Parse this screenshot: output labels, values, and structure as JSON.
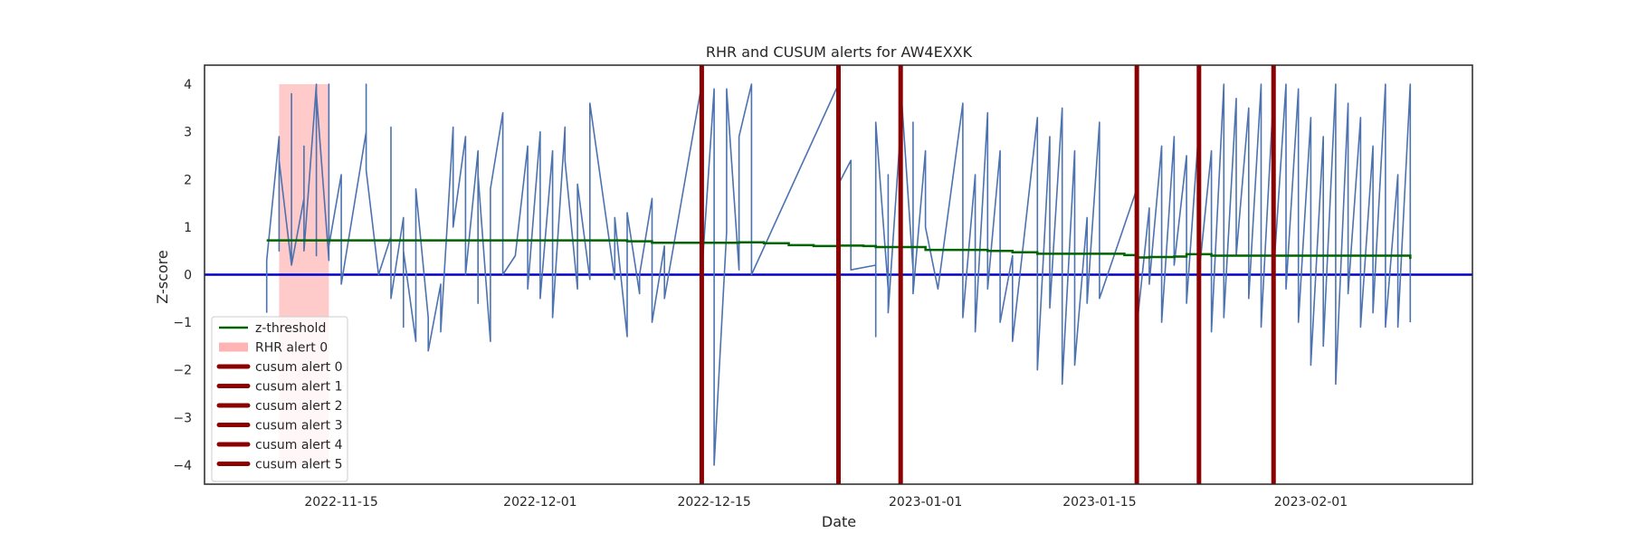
{
  "chart_data": {
    "type": "line",
    "title": "RHR and CUSUM alerts for AW4EXXK",
    "xlabel": "Date",
    "ylabel": "Z-score",
    "xlim": [
      "2022-11-04",
      "2023-02-14"
    ],
    "ylim": [
      -4.4,
      4.4
    ],
    "x_ticks": [
      "2022-11-15",
      "2022-12-01",
      "2022-12-15",
      "2023-01-01",
      "2023-01-15",
      "2023-02-01"
    ],
    "y_ticks": [
      4,
      3,
      2,
      1,
      0,
      -1,
      -2,
      -3,
      -4
    ],
    "grid": false,
    "legend_position": "lower-left",
    "colors": {
      "zscore": "#4c72b0",
      "z_threshold": "#006400",
      "rhr_alert": "#ffb3b3",
      "cusum_alert": "#8b0000",
      "baseline": "#0000cc"
    },
    "series": [
      {
        "name": "z-threshold",
        "type": "step",
        "x": [
          "2022-11-09",
          "2022-12-08",
          "2022-12-10",
          "2022-12-13",
          "2022-12-17",
          "2022-12-19",
          "2022-12-21",
          "2022-12-23",
          "2022-12-25",
          "2022-12-27",
          "2022-12-28",
          "2023-01-01",
          "2023-01-06",
          "2023-01-08",
          "2023-01-10",
          "2023-01-17",
          "2023-01-18",
          "2023-01-19",
          "2023-01-21",
          "2023-01-22",
          "2023-01-24",
          "2023-02-09"
        ],
        "y": [
          0.72,
          0.7,
          0.67,
          0.67,
          0.68,
          0.66,
          0.62,
          0.6,
          0.61,
          0.6,
          0.58,
          0.52,
          0.5,
          0.47,
          0.44,
          0.41,
          0.36,
          0.37,
          0.38,
          0.43,
          0.4,
          0.33
        ]
      }
    ],
    "zscore_points": [
      [
        "2022-11-09",
        -0.8
      ],
      [
        "2022-11-09",
        0.3
      ],
      [
        "2022-11-10",
        2.9
      ],
      [
        "2022-11-10",
        0.5
      ],
      [
        "2022-11-10",
        2.4
      ],
      [
        "2022-11-11",
        0.2
      ],
      [
        "2022-11-11",
        3.8
      ],
      [
        "2022-11-11",
        0.2
      ],
      [
        "2022-11-12",
        1.6
      ],
      [
        "2022-11-12",
        2.7
      ],
      [
        "2022-11-12",
        0.5
      ],
      [
        "2022-11-13",
        4.0
      ],
      [
        "2022-11-13",
        0.4
      ],
      [
        "2022-11-13",
        1.9
      ],
      [
        "2022-11-13",
        3.8
      ],
      [
        "2022-11-14",
        0.3
      ],
      [
        "2022-11-14",
        4.0
      ],
      [
        "2022-11-14",
        0.6
      ],
      [
        "2022-11-15",
        2.1
      ],
      [
        "2022-11-15",
        -0.2
      ],
      [
        "2022-11-17",
        3.0
      ],
      [
        "2022-11-17",
        4.0
      ],
      [
        "2022-11-17",
        2.2
      ],
      [
        "2022-11-18",
        0.0
      ],
      [
        "2022-11-19",
        0.8
      ],
      [
        "2022-11-19",
        3.1
      ],
      [
        "2022-11-19",
        -0.5
      ],
      [
        "2022-11-20",
        1.2
      ],
      [
        "2022-11-20",
        -1.1
      ],
      [
        "2022-11-20",
        0.5
      ],
      [
        "2022-11-21",
        -1.4
      ],
      [
        "2022-11-21",
        1.8
      ],
      [
        "2022-11-22",
        -0.9
      ],
      [
        "2022-11-22",
        -1.6
      ],
      [
        "2022-11-23",
        -0.2
      ],
      [
        "2022-11-23",
        -1.2
      ],
      [
        "2022-11-24",
        3.1
      ],
      [
        "2022-11-24",
        1.0
      ],
      [
        "2022-11-25",
        2.9
      ],
      [
        "2022-11-25",
        0.0
      ],
      [
        "2022-11-26",
        2.6
      ],
      [
        "2022-11-26",
        -0.6
      ],
      [
        "2022-11-26",
        2.1
      ],
      [
        "2022-11-27",
        -1.4
      ],
      [
        "2022-11-27",
        1.8
      ],
      [
        "2022-11-28",
        3.4
      ],
      [
        "2022-11-28",
        0.0
      ],
      [
        "2022-11-29",
        0.4
      ],
      [
        "2022-11-30",
        2.7
      ],
      [
        "2022-11-30",
        -0.3
      ],
      [
        "2022-12-01",
        3.0
      ],
      [
        "2022-12-01",
        1.9
      ],
      [
        "2022-12-01",
        -0.5
      ],
      [
        "2022-12-02",
        2.6
      ],
      [
        "2022-12-02",
        -0.9
      ],
      [
        "2022-12-03",
        3.1
      ],
      [
        "2022-12-03",
        2.4
      ],
      [
        "2022-12-04",
        -0.3
      ],
      [
        "2022-12-04",
        1.9
      ],
      [
        "2022-12-05",
        -0.1
      ],
      [
        "2022-12-05",
        3.6
      ],
      [
        "2022-12-07",
        -0.1
      ],
      [
        "2022-12-07",
        1.2
      ],
      [
        "2022-12-08",
        -1.3
      ],
      [
        "2022-12-08",
        1.3
      ],
      [
        "2022-12-09",
        -0.4
      ],
      [
        "2022-12-09",
        0.0
      ],
      [
        "2022-12-10",
        1.6
      ],
      [
        "2022-12-10",
        -1.0
      ],
      [
        "2022-12-11",
        0.6
      ],
      [
        "2022-12-11",
        -0.5
      ],
      [
        "2022-12-14",
        4.0
      ],
      [
        "2022-12-14",
        0.0
      ],
      [
        "2022-12-15",
        3.9
      ],
      [
        "2022-12-15",
        -4.0
      ],
      [
        "2022-12-16",
        0.9
      ],
      [
        "2022-12-16",
        3.9
      ],
      [
        "2022-12-17",
        0.1
      ],
      [
        "2022-12-17",
        2.9
      ],
      [
        "2022-12-18",
        4.0
      ],
      [
        "2022-12-18",
        2.4
      ],
      [
        "2022-12-18",
        0.0
      ],
      [
        "2022-12-25",
        4.0
      ],
      [
        "2022-12-25",
        1.9
      ],
      [
        "2022-12-26",
        2.4
      ],
      [
        "2022-12-26",
        0.1
      ],
      [
        "2022-12-28",
        0.2
      ],
      [
        "2022-12-28",
        -1.3
      ],
      [
        "2022-12-28",
        3.2
      ],
      [
        "2022-12-29",
        -0.3
      ],
      [
        "2022-12-29",
        2.1
      ],
      [
        "2022-12-29",
        -0.8
      ],
      [
        "2022-12-30",
        3.1
      ],
      [
        "2022-12-30",
        4.0
      ],
      [
        "2022-12-31",
        0.1
      ],
      [
        "2022-12-31",
        3.2
      ],
      [
        "2022-12-31",
        -0.4
      ],
      [
        "2023-01-01",
        2.6
      ],
      [
        "2023-01-01",
        1.0
      ],
      [
        "2023-01-02",
        -0.3
      ],
      [
        "2023-01-04",
        3.6
      ],
      [
        "2023-01-04",
        -0.9
      ],
      [
        "2023-01-05",
        2.1
      ],
      [
        "2023-01-05",
        -1.2
      ],
      [
        "2023-01-06",
        3.4
      ],
      [
        "2023-01-06",
        -0.3
      ],
      [
        "2023-01-07",
        2.6
      ],
      [
        "2023-01-07",
        -1.0
      ],
      [
        "2023-01-08",
        0.4
      ],
      [
        "2023-01-08",
        -1.4
      ],
      [
        "2023-01-10",
        3.3
      ],
      [
        "2023-01-10",
        -2.0
      ],
      [
        "2023-01-11",
        2.9
      ],
      [
        "2023-01-11",
        -0.7
      ],
      [
        "2023-01-12",
        3.5
      ],
      [
        "2023-01-12",
        -2.3
      ],
      [
        "2023-01-13",
        2.6
      ],
      [
        "2023-01-13",
        -1.9
      ],
      [
        "2023-01-14",
        1.2
      ],
      [
        "2023-01-14",
        -0.6
      ],
      [
        "2023-01-15",
        3.2
      ],
      [
        "2023-01-15",
        -0.5
      ],
      [
        "2023-01-18",
        1.8
      ],
      [
        "2023-01-18",
        -1.1
      ],
      [
        "2023-01-19",
        1.4
      ],
      [
        "2023-01-19",
        -0.2
      ],
      [
        "2023-01-20",
        2.7
      ],
      [
        "2023-01-20",
        -1.0
      ],
      [
        "2023-01-21",
        2.9
      ],
      [
        "2023-01-21",
        0.2
      ],
      [
        "2023-01-22",
        2.5
      ],
      [
        "2023-01-22",
        -0.6
      ],
      [
        "2023-01-23",
        3.1
      ],
      [
        "2023-01-23",
        0.0
      ],
      [
        "2023-01-24",
        2.6
      ],
      [
        "2023-01-24",
        -1.2
      ],
      [
        "2023-01-25",
        4.0
      ],
      [
        "2023-01-25",
        -0.9
      ],
      [
        "2023-01-26",
        3.7
      ],
      [
        "2023-01-26",
        0.4
      ],
      [
        "2023-01-27",
        3.5
      ],
      [
        "2023-01-27",
        -0.5
      ],
      [
        "2023-01-28",
        4.0
      ],
      [
        "2023-01-28",
        -1.1
      ],
      [
        "2023-01-29",
        3.8
      ],
      [
        "2023-01-29",
        0.0
      ],
      [
        "2023-01-30",
        4.0
      ],
      [
        "2023-01-30",
        -0.3
      ],
      [
        "2023-01-31",
        3.9
      ],
      [
        "2023-01-31",
        -1.0
      ],
      [
        "2023-02-01",
        3.3
      ],
      [
        "2023-02-01",
        -1.9
      ],
      [
        "2023-02-02",
        2.9
      ],
      [
        "2023-02-02",
        -1.5
      ],
      [
        "2023-02-03",
        4.0
      ],
      [
        "2023-02-03",
        -2.3
      ],
      [
        "2023-02-04",
        3.6
      ],
      [
        "2023-02-04",
        -0.4
      ],
      [
        "2023-02-05",
        3.3
      ],
      [
        "2023-02-05",
        -1.1
      ],
      [
        "2023-02-06",
        2.7
      ],
      [
        "2023-02-06",
        -0.8
      ],
      [
        "2023-02-07",
        4.0
      ],
      [
        "2023-02-07",
        -1.1
      ],
      [
        "2023-02-08",
        2.1
      ],
      [
        "2023-02-08",
        -1.1
      ],
      [
        "2023-02-09",
        4.0
      ],
      [
        "2023-02-09",
        -1.0
      ]
    ],
    "baseline": 0,
    "rhr_alerts": [
      {
        "name": "RHR alert 0",
        "start": "2022-11-10",
        "end": "2022-11-14",
        "ymin": -4.0,
        "ymax": 4.0
      }
    ],
    "cusum_alerts": [
      {
        "name": "cusum alert 0",
        "x": "2022-12-14"
      },
      {
        "name": "cusum alert 1",
        "x": "2022-12-25"
      },
      {
        "name": "cusum alert 2",
        "x": "2022-12-30"
      },
      {
        "name": "cusum alert 3",
        "x": "2023-01-18"
      },
      {
        "name": "cusum alert 4",
        "x": "2023-01-23"
      },
      {
        "name": "cusum alert 5",
        "x": "2023-01-29"
      }
    ]
  },
  "legend": {
    "items": [
      {
        "label": "z-threshold",
        "kind": "line",
        "color": "#006400"
      },
      {
        "label": "RHR alert 0",
        "kind": "patch",
        "color": "#ffb3b3"
      },
      {
        "label": "cusum alert 0",
        "kind": "thick",
        "color": "#8b0000"
      },
      {
        "label": "cusum alert 1",
        "kind": "thick",
        "color": "#8b0000"
      },
      {
        "label": "cusum alert 2",
        "kind": "thick",
        "color": "#8b0000"
      },
      {
        "label": "cusum alert 3",
        "kind": "thick",
        "color": "#8b0000"
      },
      {
        "label": "cusum alert 4",
        "kind": "thick",
        "color": "#8b0000"
      },
      {
        "label": "cusum alert 5",
        "kind": "thick",
        "color": "#8b0000"
      }
    ]
  }
}
